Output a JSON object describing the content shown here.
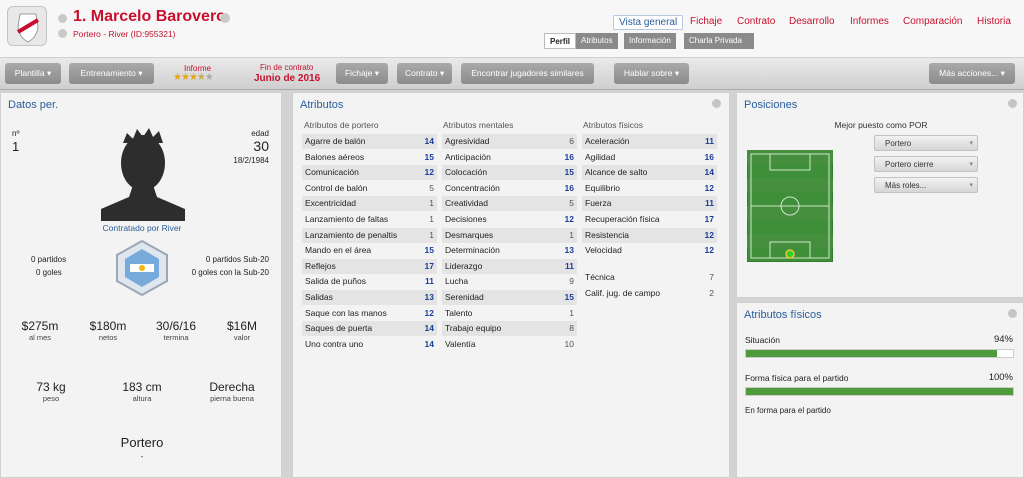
{
  "header": {
    "player_name": "1. Marcelo Barovero",
    "subtitle": "Portero - River (ID:955321)",
    "nav": [
      "Vista general",
      "Fichaje",
      "Contrato",
      "Desarrollo",
      "Informes",
      "Comparación",
      "Historia"
    ],
    "subnav": [
      "Perfil",
      "Atributos",
      "Información",
      "Charla Privada"
    ]
  },
  "toolbar": {
    "plantilla": "Plantilla",
    "entrenamiento": "Entrenamiento",
    "informe_label": "Informe",
    "informe_stars": 3.5,
    "contract_label": "Fin de contrato",
    "contract_value": "Junio de 2016",
    "fichaje": "Fichaje",
    "contrato": "Contrato",
    "encontrar": "Encontrar jugadores similares",
    "hablar": "Hablar sobre",
    "mas": "Más acciones..."
  },
  "personal": {
    "title": "Datos per.",
    "number_label": "nº",
    "number": "1",
    "age_label": "edad",
    "age": "30",
    "dob": "18/2/1984",
    "contracted": "Contratado por River",
    "partidos": "0 partidos",
    "goles": "0 goles",
    "partidos_sub20": "0 partidos Sub-20",
    "goles_sub20": "0 goles con la Sub-20",
    "finance": [
      {
        "value": "$275m",
        "label": "al mes"
      },
      {
        "value": "$180m",
        "label": "netos"
      },
      {
        "value": "30/6/16",
        "label": "termina"
      },
      {
        "value": "$16M",
        "label": "valor"
      }
    ],
    "physical": [
      {
        "value": "73 kg",
        "label": "peso"
      },
      {
        "value": "183 cm",
        "label": "altura"
      },
      {
        "value": "Derecha",
        "label": "pierna buena"
      }
    ],
    "position": "Portero",
    "position_sub": "-"
  },
  "attributes": {
    "title": "Atributos",
    "gk_header": "Atributos de portero",
    "mental_header": "Atributos mentales",
    "phys_header": "Atributos físicos",
    "goalkeeping": [
      {
        "name": "Agarre de balón",
        "value": "14"
      },
      {
        "name": "Balones aéreos",
        "value": "15"
      },
      {
        "name": "Comunicación",
        "value": "12"
      },
      {
        "name": "Control de balón",
        "value": "5"
      },
      {
        "name": "Excentricidad",
        "value": "1"
      },
      {
        "name": "Lanzamiento de faltas",
        "value": "1"
      },
      {
        "name": "Lanzamiento de penaltis",
        "value": "1"
      },
      {
        "name": "Mando en el área",
        "value": "15"
      },
      {
        "name": "Reflejos",
        "value": "17"
      },
      {
        "name": "Salida de puños",
        "value": "11"
      },
      {
        "name": "Salidas",
        "value": "13"
      },
      {
        "name": "Saque con las manos",
        "value": "12"
      },
      {
        "name": "Saques de puerta",
        "value": "14"
      },
      {
        "name": "Uno contra uno",
        "value": "14"
      }
    ],
    "mental": [
      {
        "name": "Agresividad",
        "value": "6"
      },
      {
        "name": "Anticipación",
        "value": "16"
      },
      {
        "name": "Colocación",
        "value": "15"
      },
      {
        "name": "Concentración",
        "value": "16"
      },
      {
        "name": "Creatividad",
        "value": "5"
      },
      {
        "name": "Decisiones",
        "value": "12"
      },
      {
        "name": "Desmarques",
        "value": "1"
      },
      {
        "name": "Determinación",
        "value": "13"
      },
      {
        "name": "Liderazgo",
        "value": "11"
      },
      {
        "name": "Lucha",
        "value": "9"
      },
      {
        "name": "Serenidad",
        "value": "15"
      },
      {
        "name": "Talento",
        "value": "1"
      },
      {
        "name": "Trabajo equipo",
        "value": "8"
      },
      {
        "name": "Valentía",
        "value": "10"
      }
    ],
    "physical": [
      {
        "name": "Aceleración",
        "value": "11"
      },
      {
        "name": "Agilidad",
        "value": "16"
      },
      {
        "name": "Alcance de salto",
        "value": "14"
      },
      {
        "name": "Equilibrio",
        "value": "12"
      },
      {
        "name": "Fuerza",
        "value": "11"
      },
      {
        "name": "Recuperación física",
        "value": "17"
      },
      {
        "name": "Resistencia",
        "value": "12"
      },
      {
        "name": "Velocidad",
        "value": "12"
      }
    ],
    "extra": [
      {
        "name": "Técnica",
        "value": "7"
      },
      {
        "name": "Calif. jug. de campo",
        "value": "2"
      }
    ]
  },
  "positions": {
    "title": "Posiciones",
    "best_label": "Mejor puesto como POR",
    "options": [
      "Portero",
      "Portero cierre",
      "Más roles..."
    ]
  },
  "fitness": {
    "title": "Atributos físicos",
    "situacion_label": "Situación",
    "situacion_value": "94%",
    "situacion_fraction": 0.94,
    "forma_label": "Forma física para el partido",
    "forma_value": "100%",
    "forma_fraction": 1.0,
    "status": "En forma para el partido"
  },
  "colors": {
    "accent_red": "#c8102e",
    "title_blue": "#2a5d9b",
    "bar_green": "#4f9a3d",
    "pitch_green": "#3f8e3a"
  }
}
